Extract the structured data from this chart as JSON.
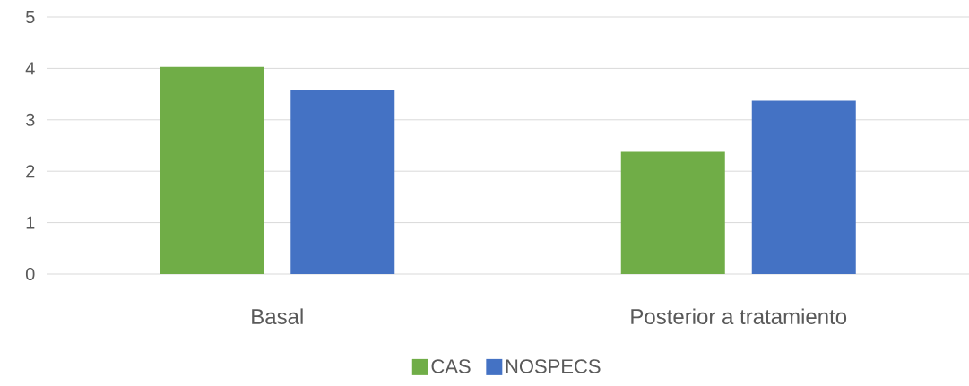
{
  "chart_data": {
    "type": "bar",
    "categories": [
      "Basal",
      "Posterior a tratamiento"
    ],
    "series": [
      {
        "name": "CAS",
        "color": "#70ad47",
        "values": [
          4.03,
          2.38
        ]
      },
      {
        "name": "NOSPECS",
        "color": "#4472c4",
        "values": [
          3.59,
          3.37
        ]
      }
    ],
    "ylim": [
      0,
      5
    ],
    "yticks": [
      0,
      1,
      2,
      3,
      4,
      5
    ],
    "grid": "y",
    "legend": "bottom"
  }
}
